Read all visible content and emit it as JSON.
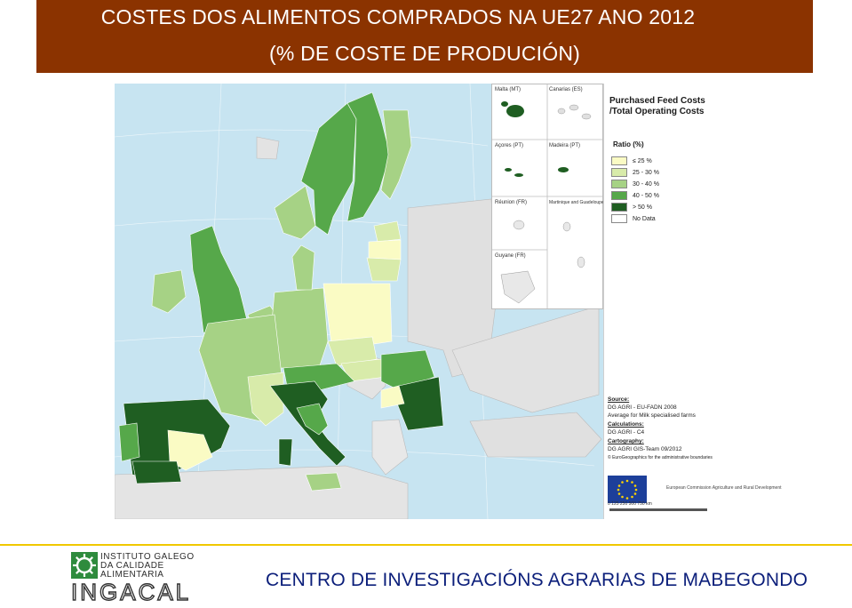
{
  "header": {
    "title_line1": "COSTES DOS ALIMENTOS COMPRADOS NA UE27 ANO 2012",
    "title_line2": "(% DE COSTE DE PRODUCIÓN)",
    "background_color": "#8B3300"
  },
  "map": {
    "legend": {
      "title_line1": "Purchased Feed Costs",
      "title_line2": "/Total Operating Costs",
      "ratio_label": "Ratio (%)",
      "classes": [
        {
          "label": "≤ 25 %",
          "color": "#fafbc4"
        },
        {
          "label": "25 - 30 %",
          "color": "#d8ebaa"
        },
        {
          "label": "30 - 40 %",
          "color": "#a6d285"
        },
        {
          "label": "40 - 50 %",
          "color": "#56a84a"
        },
        {
          "label": "> 50 %",
          "color": "#1f5e22"
        },
        {
          "label": "No Data",
          "color": "#ffffff"
        }
      ]
    },
    "insets": [
      {
        "label": "Malta (MT)"
      },
      {
        "label": "Canarias (ES)"
      },
      {
        "label": "Açores (PT)"
      },
      {
        "label": "Madeira (PT)"
      },
      {
        "label": "Réunion (FR)"
      },
      {
        "label": "Martinique and Guadeloupe (FR)"
      },
      {
        "label": "Guyane (FR)"
      }
    ],
    "source": {
      "source_heading": "Source:",
      "source_line1": "DG AGRI - EU-FADN 2008",
      "source_line2": "Average for Milk specialised farms",
      "calc_heading": "Calculations:",
      "calc_line": "DG AGRI - C4",
      "carto_heading": "Cartography:",
      "carto_line": "DG AGRI GIS-Team 09/2012",
      "copyright": "© EuroGeographics for the administrative boundaries"
    },
    "agency": "European Commission Agriculture and Rural Development",
    "scale_labels": "0  125 250   500   750 km"
  },
  "footer": {
    "logo_line1": "INSTITUTO GALEGO",
    "logo_line2": "DA CALIDADE",
    "logo_line3": "ALIMENTARIA",
    "logo_word": "INGACAL",
    "center_name": "CENTRO DE INVESTIGACIÓNS AGRARIAS DE MABEGONDO",
    "rule_color": "#f0c800",
    "text_color": "#0b1e7a"
  }
}
